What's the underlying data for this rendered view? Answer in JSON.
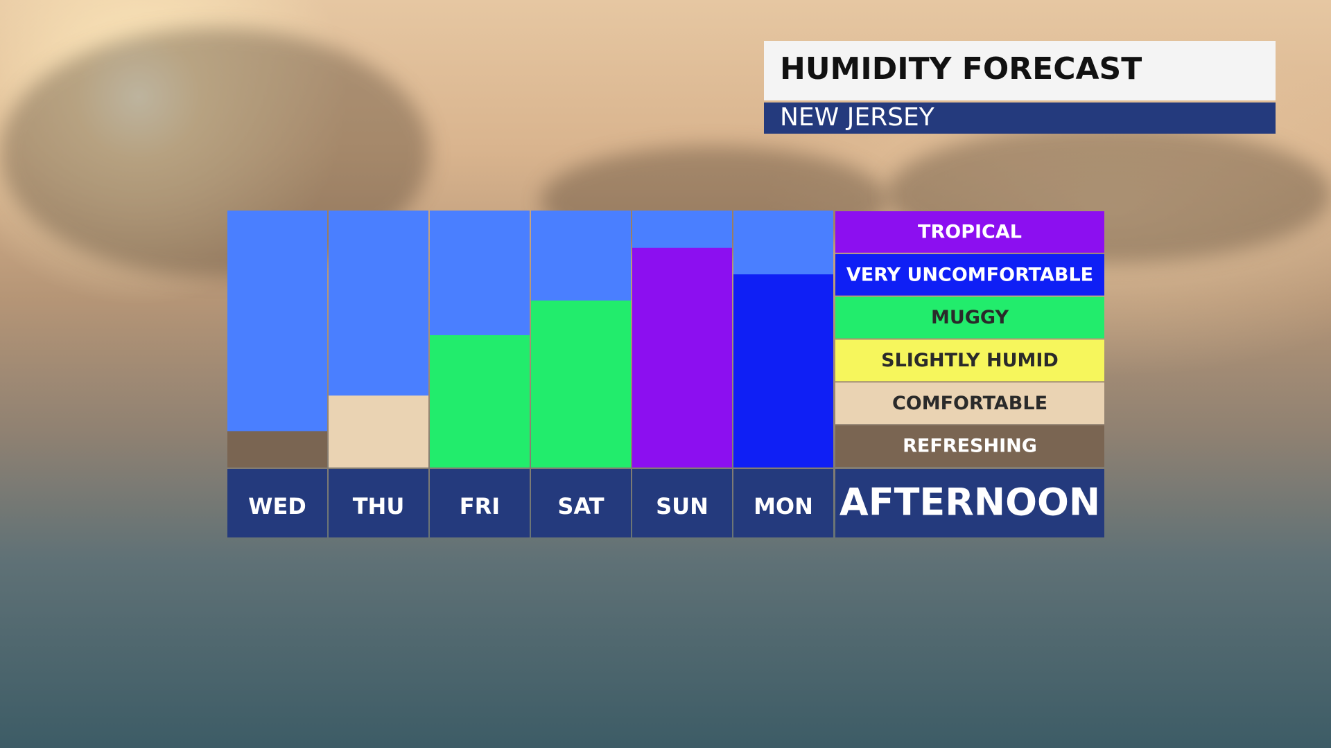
{
  "chart_data": {
    "type": "bar",
    "title": "HUMIDITY FORECAST",
    "subtitle": "NEW JERSEY",
    "categories": [
      "WED",
      "THU",
      "FRI",
      "SAT",
      "SUN",
      "MON"
    ],
    "values": [
      0.85,
      1.68,
      3.09,
      3.9,
      5.13,
      4.51
    ],
    "colors": [
      "#7a6552",
      "#ead3b3",
      "#22ec6c",
      "#22ec6c",
      "#8c0ff0",
      "#0f1ff5"
    ],
    "ylim": [
      0,
      6
    ],
    "plot_background": "#4a7fff",
    "x_label": "AFTERNOON",
    "levels": [
      {
        "name": "TROPICAL",
        "color": "#8c0ff0"
      },
      {
        "name": "VERY UNCOMFORTABLE",
        "color": "#0f1ff5"
      },
      {
        "name": "MUGGY",
        "color": "#22ec6c"
      },
      {
        "name": "SLIGHTLY HUMID",
        "color": "#f6f65c"
      },
      {
        "name": "COMFORTABLE",
        "color": "#ead3b3"
      },
      {
        "name": "REFRESHING",
        "color": "#7a6552"
      }
    ]
  }
}
